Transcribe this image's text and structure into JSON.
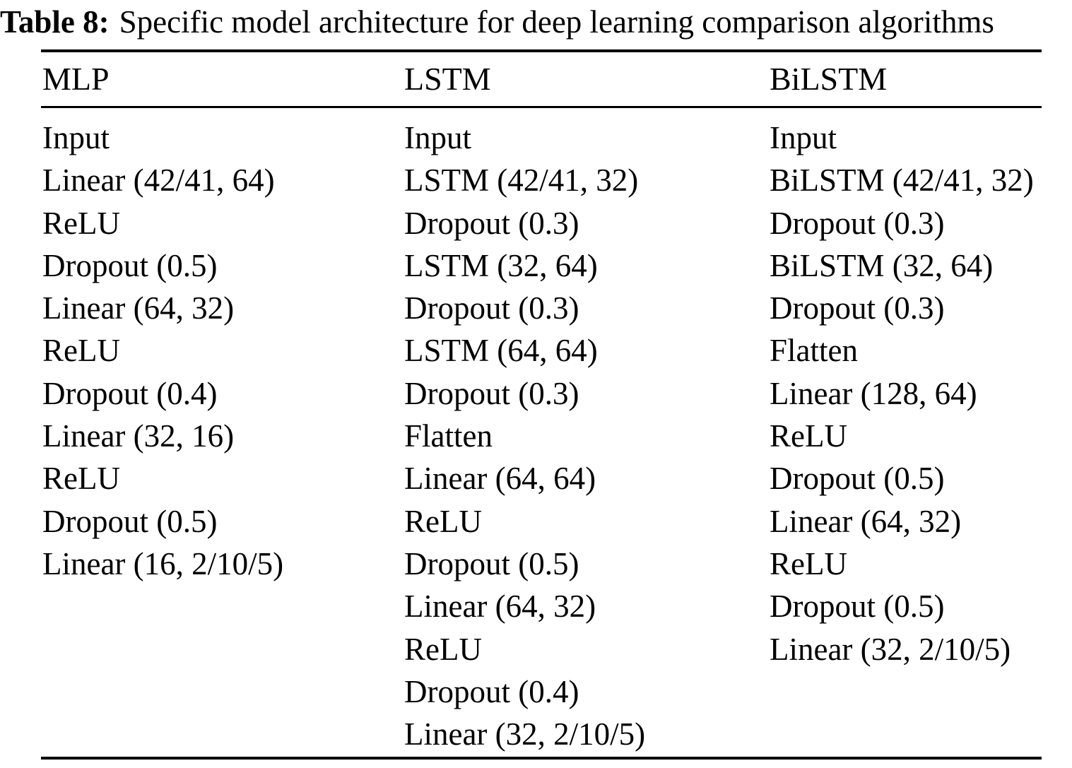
{
  "title": {
    "label": "Table 8:",
    "text": "Specific model architecture for deep learning comparison algorithms"
  },
  "table": {
    "columns": [
      {
        "header": "MLP",
        "layers": [
          "Input",
          "Linear (42/41, 64)",
          "ReLU",
          "Dropout (0.5)",
          "Linear (64, 32)",
          "ReLU",
          "Dropout (0.4)",
          "Linear (32, 16)",
          "ReLU",
          "Dropout (0.5)",
          "Linear (16, 2/10/5)"
        ]
      },
      {
        "header": "LSTM",
        "layers": [
          "Input",
          "LSTM (42/41, 32)",
          "Dropout (0.3)",
          "LSTM (32, 64)",
          "Dropout (0.3)",
          "LSTM (64, 64)",
          "Dropout (0.3)",
          "Flatten",
          "Linear (64, 64)",
          "ReLU",
          "Dropout (0.5)",
          "Linear (64, 32)",
          "ReLU",
          "Dropout (0.4)",
          "Linear (32, 2/10/5)"
        ]
      },
      {
        "header": "BiLSTM",
        "layers": [
          "Input",
          "BiLSTM (42/41, 32)",
          "Dropout (0.3)",
          "BiLSTM (32, 64)",
          "Dropout (0.3)",
          "Flatten",
          "Linear (128, 64)",
          "ReLU",
          "Dropout (0.5)",
          "Linear (64, 32)",
          "ReLU",
          "Dropout (0.5)",
          "Linear (32, 2/10/5)"
        ]
      }
    ]
  }
}
